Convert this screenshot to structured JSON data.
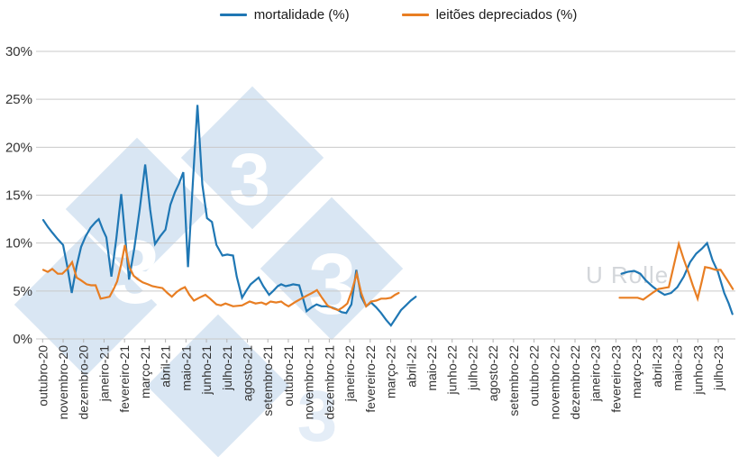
{
  "legend": [
    {
      "id": "mortalidade",
      "label": "mortalidade (%)",
      "color": "#1f77b4"
    },
    {
      "id": "leitoes-depreciados",
      "label": "leitões depreciados (%)",
      "color": "#e87e23"
    }
  ],
  "watermark": {
    "glyph": "3",
    "user_text": "U Rolle",
    "diamond_color": "#d9e6f3"
  },
  "chart_data": {
    "type": "line",
    "title": "",
    "xlabel": "",
    "ylabel": "",
    "ylim": [
      0,
      30
    ],
    "grid": true,
    "legend_position": "top-center",
    "y_ticks": [
      {
        "value": 0,
        "label": "0%"
      },
      {
        "value": 5,
        "label": "5%"
      },
      {
        "value": 10,
        "label": "10%"
      },
      {
        "value": 15,
        "label": "15%"
      },
      {
        "value": 20,
        "label": "20%"
      },
      {
        "value": 25,
        "label": "25%"
      },
      {
        "value": 30,
        "label": "30%"
      }
    ],
    "categories": [
      "outubro-20",
      "novembro-20",
      "dezembro-20",
      "janeiro-21",
      "fevereiro-21",
      "março-21",
      "abril-21",
      "maio-21",
      "junho-21",
      "julho-21",
      "agosto-21",
      "setembro-21",
      "outubro-21",
      "novembro-21",
      "dezembro-21",
      "janeiro-22",
      "fevereiro-22",
      "março-22",
      "abril-22",
      "maio-22",
      "junho-22",
      "julho-22",
      "agosto-22",
      "setembro-22",
      "outubro-22",
      "novembro-22",
      "dezembro-22",
      "janeiro-23",
      "fevereiro-23",
      "março-23",
      "abril-23",
      "maio-23",
      "junho-23",
      "julho-23"
    ],
    "x_unit": "month-index (0 = outubro-20), fractional = weekly points",
    "series": [
      {
        "id": "mortalidade",
        "name": "mortalidade (%)",
        "color": "#1f77b4",
        "segments": [
          [
            [
              0.03,
              12.4
            ],
            [
              0.25,
              11.7
            ],
            [
              0.47,
              11.1
            ],
            [
              0.74,
              10.4
            ],
            [
              1.0,
              9.8
            ],
            [
              1.2,
              7.6
            ],
            [
              1.42,
              4.8
            ],
            [
              1.66,
              7.6
            ],
            [
              1.88,
              9.6
            ],
            [
              2.1,
              10.7
            ],
            [
              2.34,
              11.6
            ],
            [
              2.59,
              12.2
            ],
            [
              2.74,
              12.5
            ],
            [
              2.94,
              11.4
            ],
            [
              3.11,
              10.6
            ],
            [
              3.36,
              6.5
            ],
            [
              3.6,
              10.5
            ],
            [
              3.84,
              15.1
            ],
            [
              4.06,
              10.0
            ],
            [
              4.22,
              6.2
            ],
            [
              4.48,
              9.5
            ],
            [
              4.74,
              13.5
            ],
            [
              5.01,
              18.2
            ],
            [
              5.25,
              13.5
            ],
            [
              5.49,
              9.9
            ],
            [
              5.74,
              10.7
            ],
            [
              6.0,
              11.4
            ],
            [
              6.24,
              14.0
            ],
            [
              6.46,
              15.3
            ],
            [
              6.66,
              16.2
            ],
            [
              6.87,
              17.4
            ],
            [
              7.1,
              7.5
            ],
            [
              7.33,
              16.0
            ],
            [
              7.56,
              24.4
            ],
            [
              7.8,
              16.1
            ],
            [
              8.03,
              12.6
            ],
            [
              8.27,
              12.2
            ],
            [
              8.49,
              9.8
            ],
            [
              8.78,
              8.7
            ],
            [
              9.02,
              8.8
            ],
            [
              9.3,
              8.7
            ],
            [
              9.48,
              6.5
            ],
            [
              9.74,
              4.3
            ],
            [
              9.94,
              5.0
            ],
            [
              10.16,
              5.7
            ],
            [
              10.55,
              6.4
            ],
            [
              10.78,
              5.5
            ],
            [
              11.06,
              4.6
            ],
            [
              11.26,
              5.0
            ],
            [
              11.48,
              5.5
            ],
            [
              11.65,
              5.7
            ],
            [
              11.87,
              5.5
            ],
            [
              12.06,
              5.6
            ],
            [
              12.23,
              5.7
            ],
            [
              12.53,
              5.6
            ],
            [
              12.72,
              4.2
            ],
            [
              12.89,
              2.9
            ],
            [
              13.14,
              3.3
            ],
            [
              13.38,
              3.6
            ],
            [
              13.62,
              3.4
            ],
            [
              13.86,
              3.4
            ],
            [
              14.11,
              3.3
            ],
            [
              14.35,
              3.1
            ],
            [
              14.59,
              2.8
            ],
            [
              14.83,
              2.7
            ],
            [
              15.08,
              3.6
            ],
            [
              15.32,
              7.2
            ],
            [
              15.56,
              4.4
            ],
            [
              15.8,
              3.4
            ],
            [
              16.04,
              3.8
            ],
            [
              16.29,
              3.3
            ],
            [
              16.53,
              2.7
            ],
            [
              16.77,
              2.0
            ],
            [
              17.01,
              1.4
            ],
            [
              17.26,
              2.2
            ],
            [
              17.5,
              3.0
            ],
            [
              17.74,
              3.5
            ],
            [
              17.98,
              4.0
            ],
            [
              18.22,
              4.4
            ]
          ],
          [
            [
              28.27,
              6.8
            ],
            [
              28.58,
              7.0
            ],
            [
              28.89,
              7.1
            ],
            [
              29.19,
              6.8
            ],
            [
              29.46,
              6.1
            ],
            [
              29.77,
              5.5
            ],
            [
              30.07,
              5.0
            ],
            [
              30.38,
              4.6
            ],
            [
              30.69,
              4.8
            ],
            [
              31.0,
              5.4
            ],
            [
              31.31,
              6.5
            ],
            [
              31.62,
              8.0
            ],
            [
              31.92,
              8.9
            ],
            [
              32.19,
              9.4
            ],
            [
              32.45,
              10.0
            ],
            [
              32.72,
              8.2
            ],
            [
              32.98,
              7.0
            ],
            [
              33.29,
              4.8
            ],
            [
              33.51,
              3.7
            ],
            [
              33.69,
              2.6
            ]
          ]
        ]
      },
      {
        "id": "leitoes-depreciados",
        "name": "leitões depreciados (%)",
        "color": "#e87e23",
        "segments": [
          [
            [
              0.03,
              7.2
            ],
            [
              0.25,
              7.0
            ],
            [
              0.47,
              7.3
            ],
            [
              0.74,
              6.8
            ],
            [
              0.96,
              6.8
            ],
            [
              1.2,
              7.3
            ],
            [
              1.44,
              8.0
            ],
            [
              1.66,
              6.4
            ],
            [
              1.88,
              6.1
            ],
            [
              2.15,
              5.7
            ],
            [
              2.37,
              5.6
            ],
            [
              2.59,
              5.6
            ],
            [
              2.83,
              4.2
            ],
            [
              3.05,
              4.3
            ],
            [
              3.27,
              4.4
            ],
            [
              3.47,
              5.2
            ],
            [
              3.64,
              6.0
            ],
            [
              3.84,
              7.8
            ],
            [
              4.02,
              9.8
            ],
            [
              4.24,
              7.5
            ],
            [
              4.44,
              6.6
            ],
            [
              4.67,
              6.2
            ],
            [
              4.89,
              5.9
            ],
            [
              5.14,
              5.7
            ],
            [
              5.36,
              5.5
            ],
            [
              5.6,
              5.4
            ],
            [
              5.85,
              5.3
            ],
            [
              6.09,
              4.8
            ],
            [
              6.31,
              4.4
            ],
            [
              6.55,
              4.9
            ],
            [
              6.75,
              5.2
            ],
            [
              6.95,
              5.4
            ],
            [
              7.17,
              4.6
            ],
            [
              7.39,
              4.0
            ],
            [
              7.65,
              4.3
            ],
            [
              7.95,
              4.6
            ],
            [
              8.18,
              4.2
            ],
            [
              8.49,
              3.6
            ],
            [
              8.71,
              3.5
            ],
            [
              8.93,
              3.7
            ],
            [
              9.3,
              3.4
            ],
            [
              9.74,
              3.5
            ],
            [
              10.11,
              3.9
            ],
            [
              10.4,
              3.7
            ],
            [
              10.69,
              3.8
            ],
            [
              10.91,
              3.6
            ],
            [
              11.13,
              3.9
            ],
            [
              11.4,
              3.8
            ],
            [
              11.65,
              3.9
            ],
            [
              11.84,
              3.6
            ],
            [
              12.01,
              3.4
            ],
            [
              12.38,
              3.9
            ],
            [
              12.63,
              4.2
            ],
            [
              12.89,
              4.5
            ],
            [
              13.16,
              4.8
            ],
            [
              13.4,
              5.1
            ],
            [
              13.64,
              4.3
            ],
            [
              13.91,
              3.5
            ],
            [
              14.17,
              3.2
            ],
            [
              14.44,
              3.0
            ],
            [
              14.66,
              3.3
            ],
            [
              14.88,
              3.7
            ],
            [
              15.1,
              5.0
            ],
            [
              15.34,
              6.8
            ],
            [
              15.56,
              4.8
            ],
            [
              15.8,
              3.4
            ],
            [
              16.04,
              3.9
            ],
            [
              16.29,
              4.0
            ],
            [
              16.53,
              4.2
            ],
            [
              16.77,
              4.2
            ],
            [
              17.01,
              4.3
            ],
            [
              17.21,
              4.6
            ],
            [
              17.39,
              4.8
            ]
          ],
          [
            [
              28.18,
              4.3
            ],
            [
              28.49,
              4.3
            ],
            [
              28.8,
              4.3
            ],
            [
              29.06,
              4.3
            ],
            [
              29.33,
              4.1
            ],
            [
              29.59,
              4.5
            ],
            [
              29.85,
              4.9
            ],
            [
              30.07,
              5.2
            ],
            [
              30.34,
              5.3
            ],
            [
              30.58,
              5.4
            ],
            [
              30.82,
              7.6
            ],
            [
              31.07,
              9.9
            ],
            [
              31.31,
              8.3
            ],
            [
              31.55,
              6.9
            ],
            [
              31.75,
              5.6
            ],
            [
              31.99,
              4.2
            ],
            [
              32.19,
              6.0
            ],
            [
              32.35,
              7.5
            ],
            [
              32.59,
              7.4
            ],
            [
              32.87,
              7.2
            ],
            [
              33.11,
              7.2
            ],
            [
              33.42,
              6.2
            ],
            [
              33.71,
              5.2
            ]
          ]
        ]
      }
    ]
  }
}
